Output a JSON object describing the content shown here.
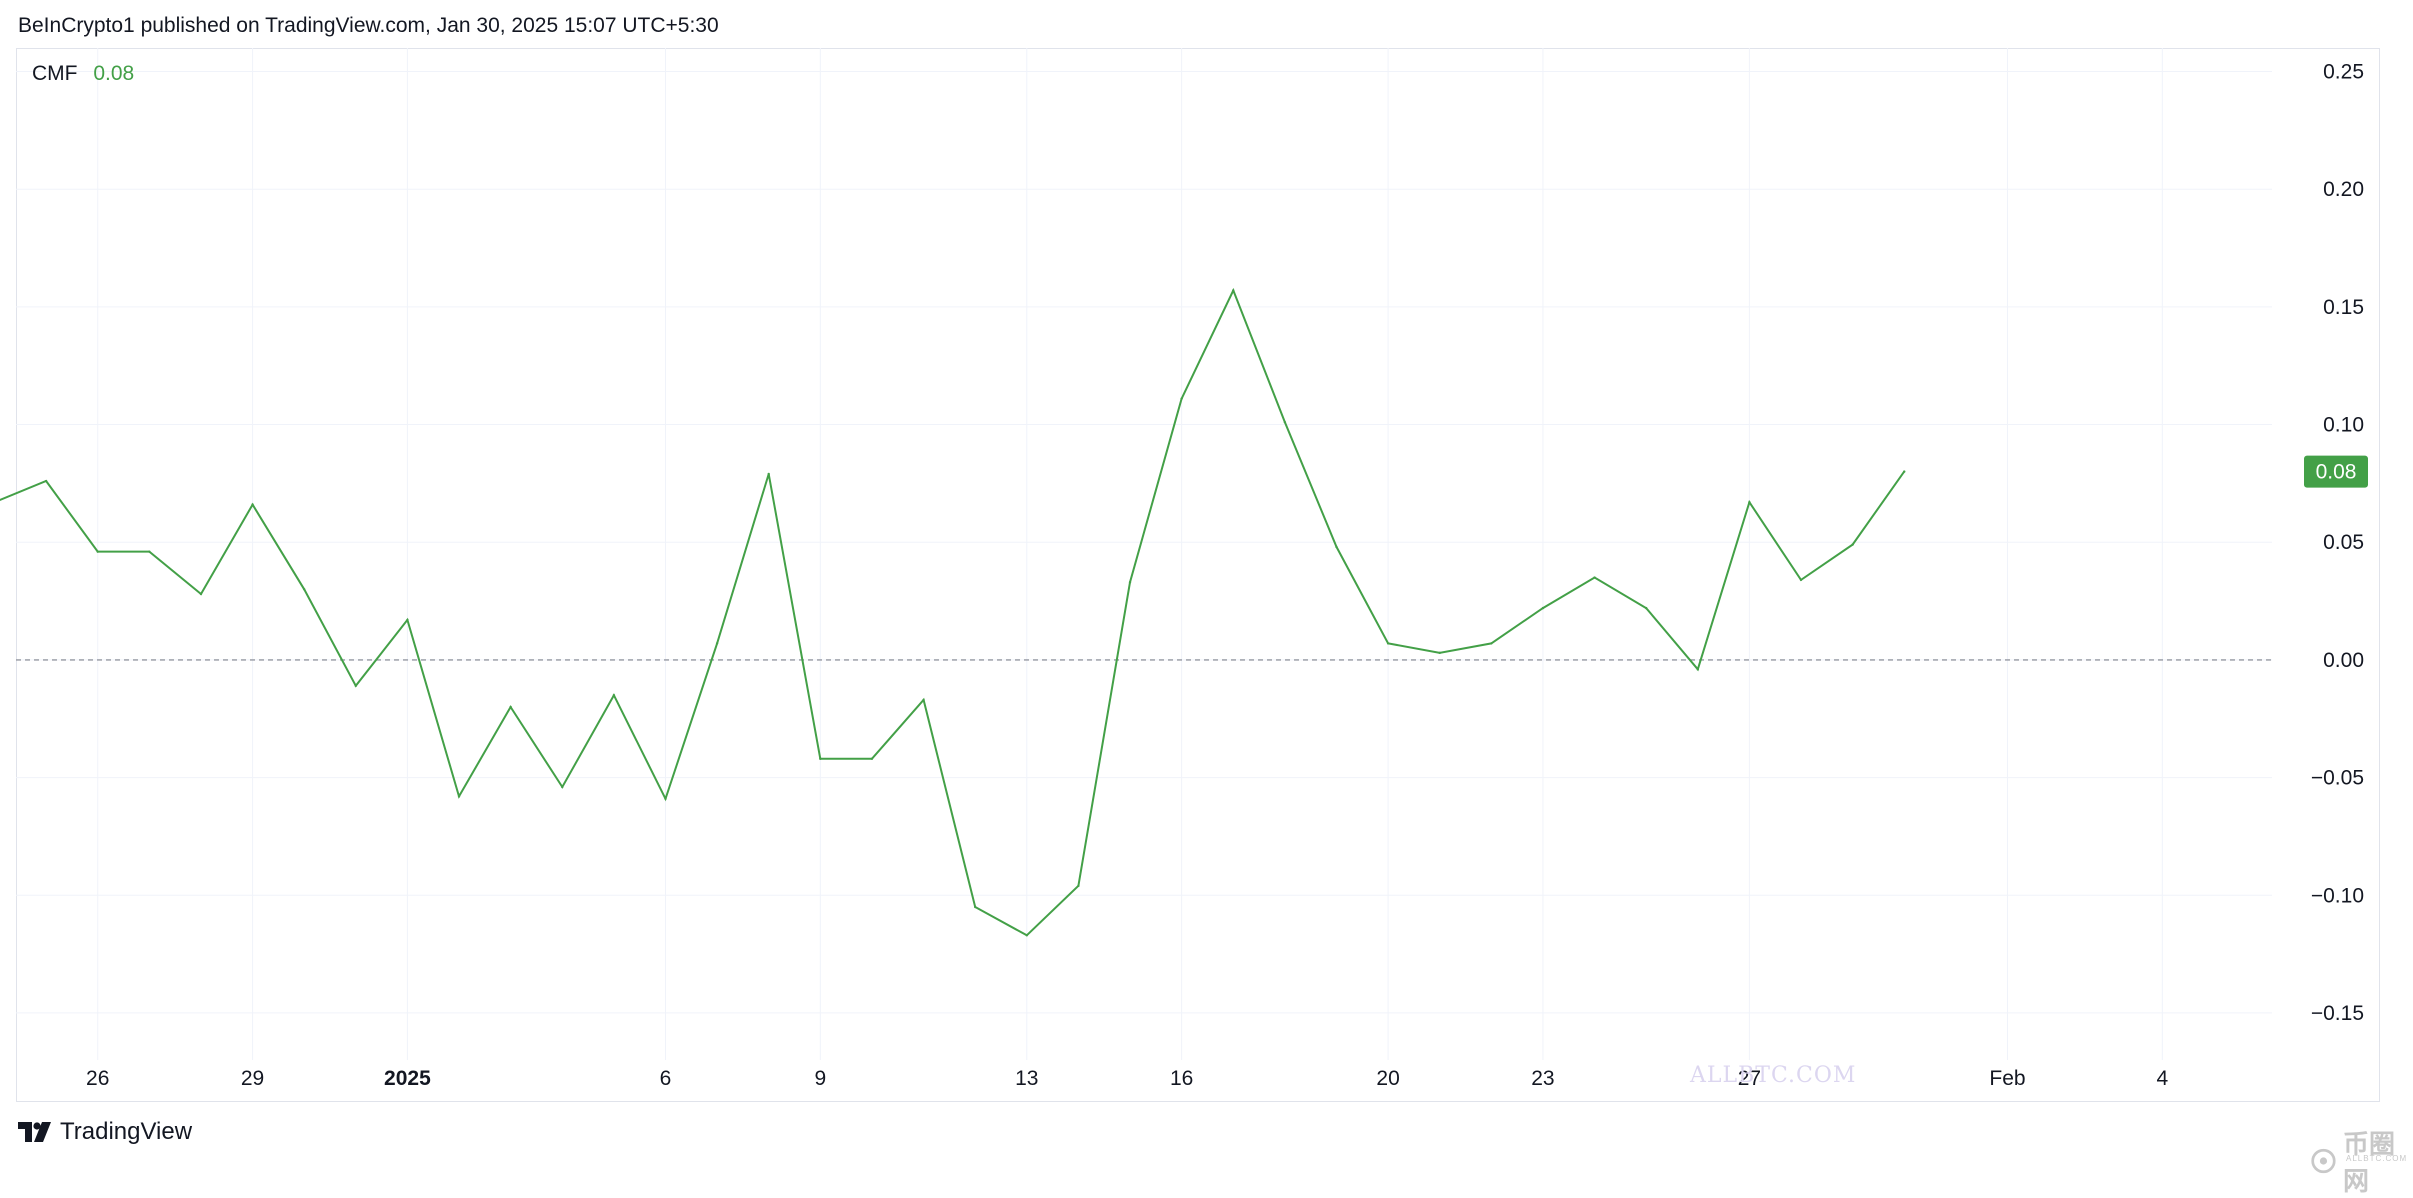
{
  "header": {
    "publisher_line": "BeInCrypto1 published on TradingView.com, Jan 30, 2025 15:07 UTC+5:30"
  },
  "legend": {
    "indicator_name": "CMF",
    "indicator_value": "0.08"
  },
  "price_tag": {
    "value": "0.08"
  },
  "footer": {
    "brand": "TradingView"
  },
  "watermarks": {
    "center_text": "ALLBTC.COM",
    "corner_text": "币圈网",
    "corner_subtext": "ALLBTC.COM"
  },
  "colors": {
    "line": "#43a047",
    "price_tag_bg": "#43a047",
    "zero_line": "#9598a1",
    "grid": "#f0f3fa",
    "axis_text": "#131722"
  },
  "chart_data": {
    "type": "line",
    "title": "",
    "xlabel": "",
    "ylabel": "",
    "ylim": [
      -0.17,
      0.26
    ],
    "zero_line": "dashed",
    "grid": true,
    "y_axis_position": "right",
    "y_ticks": [
      0.25,
      0.2,
      0.15,
      0.1,
      0.05,
      0.0,
      -0.05,
      -0.1,
      -0.15
    ],
    "y_tick_labels": [
      "0.25",
      "0.20",
      "0.15",
      "0.10",
      "0.05",
      "0.00",
      "−0.05",
      "−0.10",
      "−0.15"
    ],
    "x_ticks": [
      {
        "date": "2024-12-26",
        "label": "26",
        "bold": false
      },
      {
        "date": "2024-12-29",
        "label": "29",
        "bold": false
      },
      {
        "date": "2025-01-01",
        "label": "2025",
        "bold": true
      },
      {
        "date": "2025-01-06",
        "label": "6",
        "bold": false
      },
      {
        "date": "2025-01-09",
        "label": "9",
        "bold": false
      },
      {
        "date": "2025-01-13",
        "label": "13",
        "bold": false
      },
      {
        "date": "2025-01-16",
        "label": "16",
        "bold": false
      },
      {
        "date": "2025-01-20",
        "label": "20",
        "bold": false
      },
      {
        "date": "2025-01-23",
        "label": "23",
        "bold": false
      },
      {
        "date": "2025-01-27",
        "label": "27",
        "bold": false
      },
      {
        "date": "2025-02-01",
        "label": "Feb",
        "bold": false
      },
      {
        "date": "2025-02-04",
        "label": "4",
        "bold": false
      }
    ],
    "x_range": [
      "2024-12-24T10:00",
      "2025-02-06T03:00"
    ],
    "series": [
      {
        "name": "",
        "x": [
          "2024-12-24",
          "2024-12-25",
          "2024-12-26",
          "2024-12-27",
          "2024-12-28",
          "2024-12-29",
          "2024-12-30",
          "2024-12-31",
          "2025-01-01",
          "2025-01-02",
          "2025-01-03",
          "2025-01-04",
          "2025-01-05",
          "2025-01-06",
          "2025-01-07",
          "2025-01-08",
          "2025-01-09",
          "2025-01-10",
          "2025-01-11",
          "2025-01-12",
          "2025-01-13",
          "2025-01-14",
          "2025-01-15",
          "2025-01-16",
          "2025-01-17",
          "2025-01-18",
          "2025-01-19",
          "2025-01-20",
          "2025-01-21",
          "2025-01-22",
          "2025-01-23",
          "2025-01-24",
          "2025-01-25",
          "2025-01-26",
          "2025-01-27",
          "2025-01-28",
          "2025-01-29",
          "2025-01-30"
        ],
        "values": [
          0.067,
          0.076,
          0.046,
          0.046,
          0.028,
          0.066,
          0.03,
          -0.011,
          0.017,
          -0.058,
          -0.02,
          -0.054,
          -0.015,
          -0.059,
          0.007,
          0.079,
          -0.042,
          -0.042,
          -0.017,
          -0.105,
          -0.117,
          -0.096,
          0.033,
          0.111,
          0.157,
          0.101,
          0.048,
          0.007,
          0.003,
          0.007,
          0.022,
          0.035,
          0.022,
          -0.004,
          0.067,
          0.034,
          0.049,
          0.08
        ]
      }
    ]
  }
}
